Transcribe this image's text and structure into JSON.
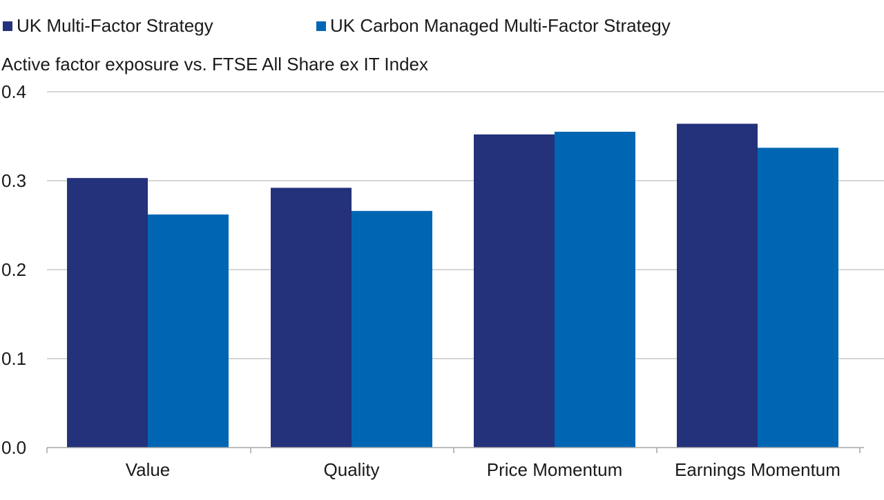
{
  "chart_data": {
    "type": "bar",
    "subtitle": "Active factor exposure vs. FTSE All Share ex IT Index",
    "categories": [
      "Value",
      "Quality",
      "Price Momentum",
      "Earnings Momentum"
    ],
    "series": [
      {
        "name": "UK Multi-Factor Strategy",
        "color": "#24317b",
        "values": [
          0.303,
          0.292,
          0.352,
          0.364
        ]
      },
      {
        "name": "UK Carbon Managed Multi-Factor Strategy",
        "color": "#0066b3",
        "values": [
          0.262,
          0.266,
          0.355,
          0.337
        ]
      }
    ],
    "yticks": [
      "0.0",
      "0.1",
      "0.2",
      "0.3",
      "0.4"
    ],
    "ylim": [
      0,
      0.4
    ],
    "grid": true,
    "legend_position": "top-left",
    "gridline_color": "#c8c8c8",
    "axis_color": "#a6a6a6"
  }
}
